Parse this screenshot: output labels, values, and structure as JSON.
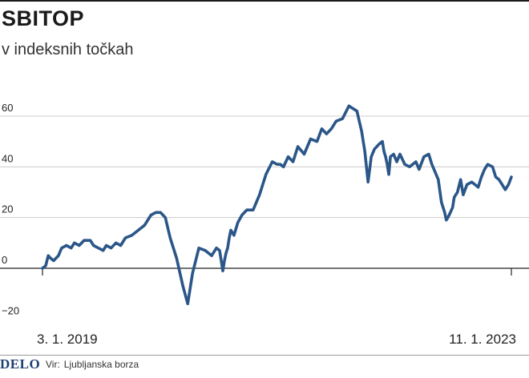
{
  "header": {
    "title": "SBITOP",
    "subtitle": "v indeksnih točkah"
  },
  "footer": {
    "brand": "DELO",
    "source_label": "Vir:",
    "source_text": "Ljubljanska borza"
  },
  "colors": {
    "line": "#2b5688",
    "axis": "#222222",
    "grid": "#cccccc",
    "brand": "#1d3f75"
  },
  "chart_data": {
    "type": "line",
    "title": "SBITOP",
    "subtitle": "v indeksnih točkah",
    "xlabel": "",
    "ylabel": "",
    "ylim": [
      -20,
      68
    ],
    "y_ticks": [
      -20,
      0,
      20,
      40,
      60
    ],
    "y_tick_labels": [
      "−20",
      "0",
      "20",
      "40",
      "60"
    ],
    "x_range": [
      0,
      1469
    ],
    "x_tick_labels": [
      {
        "x": 0,
        "label": "3. 1. 2019"
      },
      {
        "x": 1469,
        "label": "11. 1. 2023"
      }
    ],
    "grid": true,
    "series": [
      {
        "x": [
          0,
          10,
          18,
          25,
          35,
          50,
          60,
          75,
          90,
          100,
          115,
          130,
          150,
          160,
          175,
          190,
          200,
          215,
          230,
          245,
          260,
          280,
          300,
          320,
          340,
          355,
          370,
          385,
          400,
          420,
          440,
          455,
          470,
          490,
          510,
          530,
          545,
          555,
          560,
          565,
          570,
          575,
          580,
          585,
          590,
          600,
          612,
          625,
          640,
          660,
          680,
          700,
          720,
          735,
          745,
          755,
          770,
          785,
          800,
          820,
          840,
          860,
          875,
          890,
          905,
          920,
          940,
          960,
          985,
          1000,
          1010,
          1020,
          1030,
          1040,
          1055,
          1065,
          1070,
          1075,
          1080,
          1085,
          1090,
          1100,
          1110,
          1120,
          1135,
          1150,
          1160,
          1170,
          1180,
          1195,
          1210,
          1220,
          1230,
          1240,
          1250,
          1260,
          1265,
          1270,
          1278,
          1285,
          1290,
          1300,
          1310,
          1318,
          1330,
          1345,
          1355,
          1365,
          1375,
          1385,
          1395,
          1410,
          1420,
          1430,
          1440,
          1450,
          1460,
          1469
        ],
        "values": [
          0,
          1,
          5,
          4,
          3,
          5,
          8,
          9,
          8,
          10,
          9,
          11,
          11,
          9,
          8,
          7,
          9,
          8,
          10,
          9,
          12,
          13,
          15,
          17,
          21,
          22,
          22,
          20,
          12,
          4,
          -7,
          -14,
          -2,
          8,
          7,
          5,
          8,
          7,
          3,
          -1,
          3,
          6,
          8,
          12,
          15,
          13,
          18,
          21,
          23,
          23,
          29,
          37,
          42,
          41,
          41,
          40,
          44,
          42,
          48,
          45,
          51,
          50,
          55,
          53,
          55,
          58,
          59,
          64,
          62,
          54,
          46,
          34,
          44,
          47,
          49,
          50,
          46,
          44,
          41,
          37,
          44,
          45,
          42,
          45,
          41,
          40,
          41,
          42,
          39,
          44,
          45,
          41,
          38,
          35,
          26,
          22,
          19,
          20,
          22,
          24,
          28,
          30,
          35,
          29,
          33,
          34,
          33,
          32,
          36,
          39,
          41,
          40,
          36,
          35,
          33,
          31,
          33,
          36
        ]
      }
    ]
  }
}
